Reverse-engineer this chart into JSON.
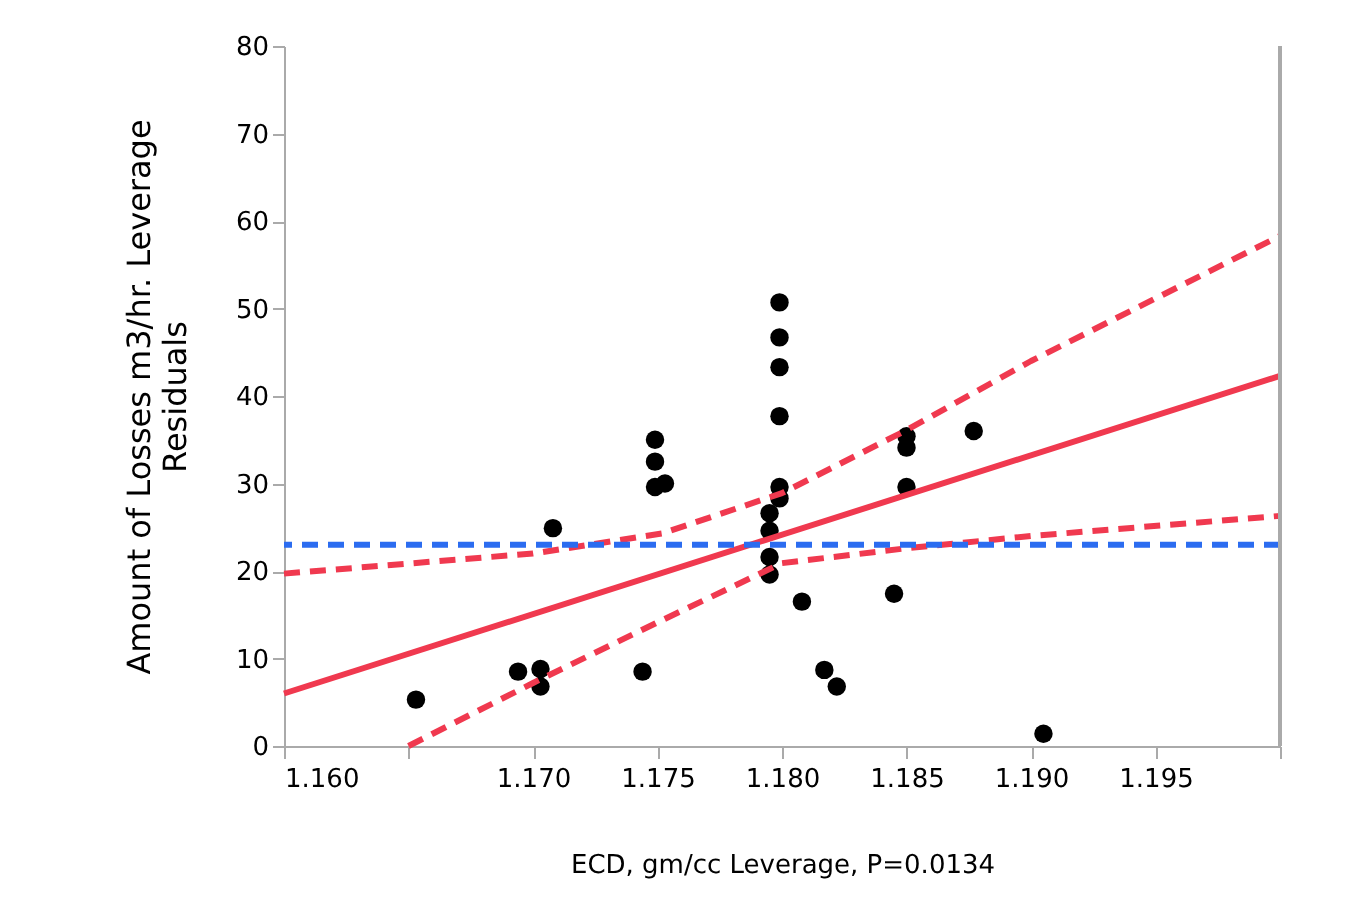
{
  "chart_data": {
    "type": "scatter",
    "xlabel": "ECD, gm/cc Leverage, P=0.0134",
    "ylabel": "Amount of Losses m3/hr. Leverage\nResiduals",
    "xlim": [
      1.16,
      1.2
    ],
    "xticks": [
      {
        "value": 1.16,
        "label": "1.160"
      },
      {
        "value": 1.165,
        "label": null
      },
      {
        "value": 1.17,
        "label": "1.170"
      },
      {
        "value": 1.175,
        "label": "1.175"
      },
      {
        "value": 1.18,
        "label": "1.180"
      },
      {
        "value": 1.185,
        "label": "1.185"
      },
      {
        "value": 1.19,
        "label": "1.190"
      },
      {
        "value": 1.195,
        "label": "1.195"
      },
      {
        "value": 1.2,
        "label": null
      }
    ],
    "ylim": [
      0,
      80
    ],
    "yticks": [
      0,
      10,
      20,
      30,
      40,
      50,
      60,
      70,
      80
    ],
    "grid": false,
    "series": [
      {
        "color": "#000000",
        "marker": "circle",
        "x": [
          1.1653,
          1.1694,
          1.1703,
          1.1703,
          1.1708,
          1.1744,
          1.1749,
          1.1749,
          1.1749,
          1.1753,
          1.1799,
          1.1799,
          1.1799,
          1.1799,
          1.1799,
          1.1799,
          1.1795,
          1.1795,
          1.1795,
          1.1795,
          1.1808,
          1.1817,
          1.1822,
          1.1845,
          1.185,
          1.185,
          1.185,
          1.1877,
          1.1905
        ],
        "values": [
          5.3,
          8.5,
          8.8,
          6.8,
          24.9,
          8.5,
          35.0,
          32.5,
          29.6,
          30.0,
          50.7,
          46.7,
          43.3,
          37.7,
          29.6,
          28.3,
          26.6,
          24.6,
          21.6,
          19.6,
          16.5,
          8.7,
          6.8,
          17.4,
          35.4,
          34.1,
          29.6,
          36.0,
          1.4
        ]
      },
      {
        "type": "line",
        "color": "#f0394f",
        "line_style": "solid",
        "x": [
          1.16,
          1.2
        ],
        "values": [
          6.0,
          42.3
        ]
      },
      {
        "type": "line",
        "color": "#f0394f",
        "line_style": "dashed",
        "x": [
          1.16,
          1.17,
          1.1752,
          1.18,
          1.185,
          1.19,
          1.2
        ],
        "values": [
          19.7,
          22.0,
          24.3,
          28.9,
          36.1,
          44.0,
          58.3
        ]
      },
      {
        "type": "line",
        "color": "#f0394f",
        "line_style": "dashed",
        "x": [
          1.165,
          1.17,
          1.1752,
          1.18,
          1.185,
          1.19,
          1.2
        ],
        "values": [
          0,
          7.2,
          14.4,
          20.9,
          22.6,
          24.0,
          26.3
        ]
      }
    ],
    "ref_lines": [
      {
        "axis": "y",
        "value": 23.0,
        "color": "#2b6cf0",
        "line_style": "dashed"
      }
    ]
  }
}
